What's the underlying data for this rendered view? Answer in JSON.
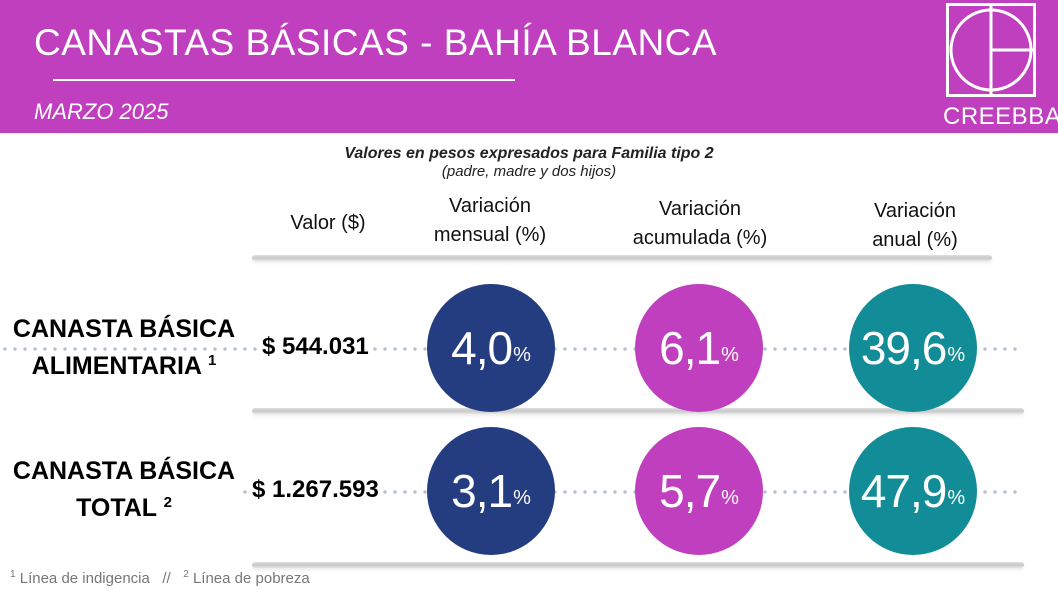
{
  "header": {
    "title": "CANASTAS  BÁSICAS - BAHÍA  BLANCA",
    "subtitle": "MARZO 2025",
    "logo_text": "CREEBBA"
  },
  "notes": {
    "line1": "Valores en pesos expresados para Familia tipo 2",
    "line2": "(padre, madre y dos hijos)"
  },
  "columns": [
    {
      "line1": "Valor ($)",
      "line2": ""
    },
    {
      "line1": "Variación",
      "line2": "mensual (%)"
    },
    {
      "line1": "Variación",
      "line2": "acumulada (%)"
    },
    {
      "line1": "Variación",
      "line2": "anual (%)"
    }
  ],
  "rows": [
    {
      "label_line1": "CANASTA BÁSICA",
      "label_line2": "ALIMENTARIA",
      "footnote_ref": "1",
      "value": "$ 544.031",
      "mensual": "4,0",
      "acumulada": "6,1",
      "anual": "39,6"
    },
    {
      "label_line1": "CANASTA BÁSICA",
      "label_line2": "TOTAL",
      "footnote_ref": "2",
      "value": "$ 1.267.593",
      "mensual": "3,1",
      "acumulada": "5,7",
      "anual": "47,9"
    }
  ],
  "percent_sign": "%",
  "footnotes": {
    "ref1": "1",
    "text1": "Línea de indigencia",
    "separator": "//",
    "ref2": "2",
    "text2": "Línea de pobreza"
  },
  "colors": {
    "brand_magenta": "#c03fbe",
    "mensual_blue": "#243c80",
    "acumulada_magenta": "#c03fbe",
    "anual_teal": "#128c97"
  }
}
